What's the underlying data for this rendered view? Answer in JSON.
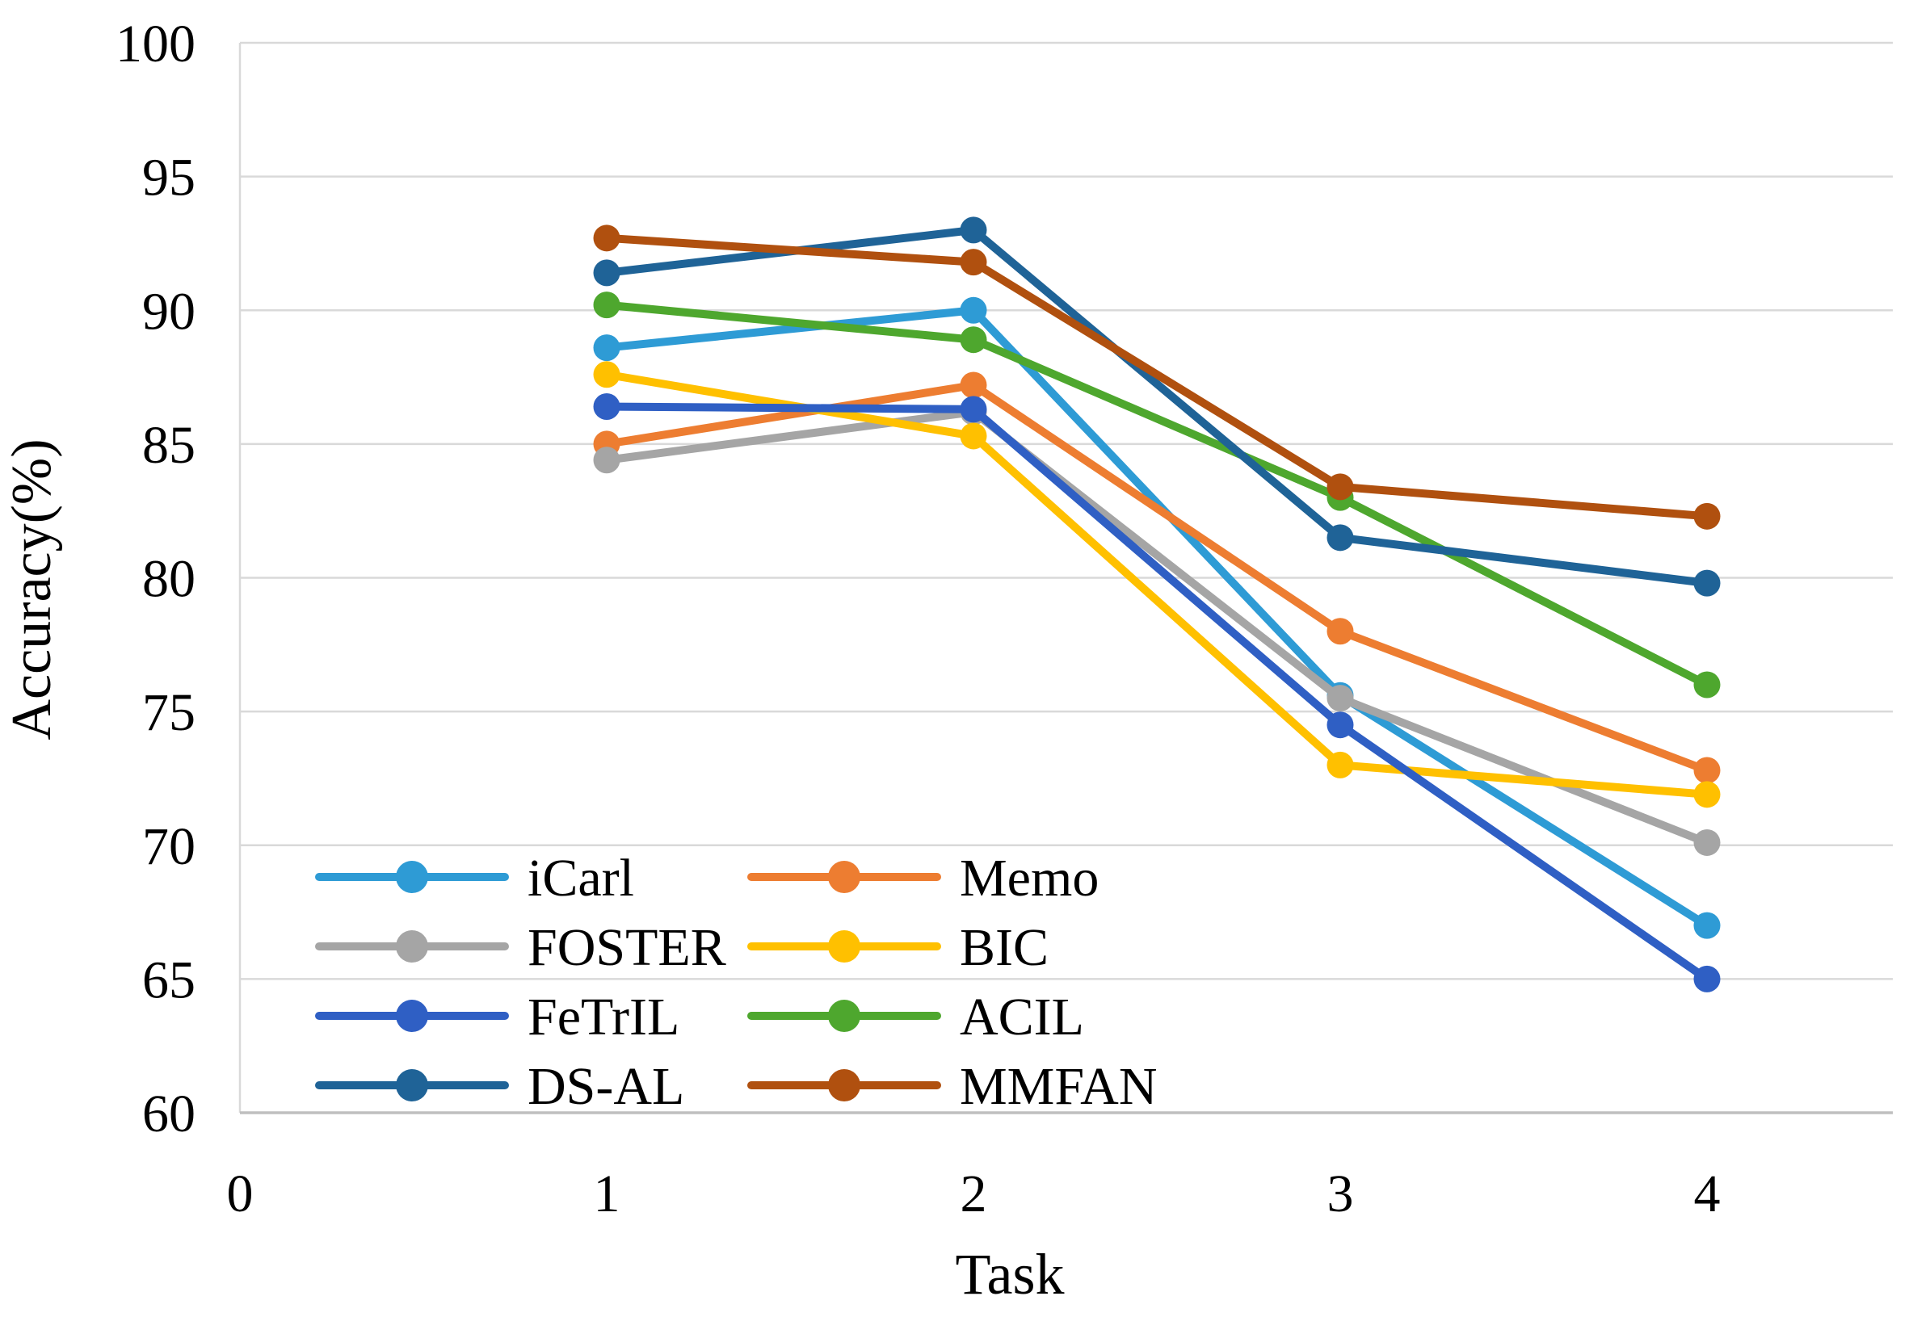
{
  "page": {
    "background": "#FFFFFF",
    "description": "Line chart of accuracy versus task for eight class-incremental learning methods"
  },
  "chart_data": {
    "type": "line",
    "title": "",
    "xlabel": "Task",
    "ylabel": "Accuracy(%)",
    "x": [
      1,
      2,
      3,
      4
    ],
    "x_ticks": [
      0,
      1,
      2,
      3,
      4
    ],
    "xlim": [
      0,
      4.5
    ],
    "y_ticks": [
      60,
      65,
      70,
      75,
      80,
      85,
      90,
      95,
      100
    ],
    "ylim": [
      60,
      100
    ],
    "grid": "horizontal",
    "grid_color": "#D9D9D9",
    "axis_line_color": "#BFBFBF",
    "legend_position": "inside-bottom-left",
    "legend_columns": [
      [
        "iCarl",
        "FOSTER",
        "FeTrIL",
        "DS-AL"
      ],
      [
        "Memo",
        "BIC",
        "ACIL",
        "MMFAN"
      ]
    ],
    "series": [
      {
        "name": "iCarl",
        "color": "#2E9BD5",
        "values": [
          88.6,
          90.0,
          75.6,
          67.0
        ]
      },
      {
        "name": "Memo",
        "color": "#ED7D31",
        "values": [
          85.0,
          87.2,
          78.0,
          72.8
        ]
      },
      {
        "name": "FOSTER",
        "color": "#A5A5A5",
        "values": [
          84.4,
          86.2,
          75.5,
          70.1
        ]
      },
      {
        "name": "BIC",
        "color": "#FFC000",
        "values": [
          87.6,
          85.3,
          73.0,
          71.9
        ]
      },
      {
        "name": "FeTrIL",
        "color": "#2F5FC4",
        "values": [
          86.4,
          86.3,
          74.5,
          65.0
        ]
      },
      {
        "name": "ACIL",
        "color": "#4EA72E",
        "values": [
          90.2,
          88.9,
          83.0,
          76.0
        ]
      },
      {
        "name": "DS-AL",
        "color": "#1F6397",
        "values": [
          91.4,
          93.0,
          81.5,
          79.8
        ]
      },
      {
        "name": "MMFAN",
        "color": "#B0500F",
        "values": [
          92.7,
          91.8,
          83.4,
          82.3
        ]
      }
    ]
  }
}
